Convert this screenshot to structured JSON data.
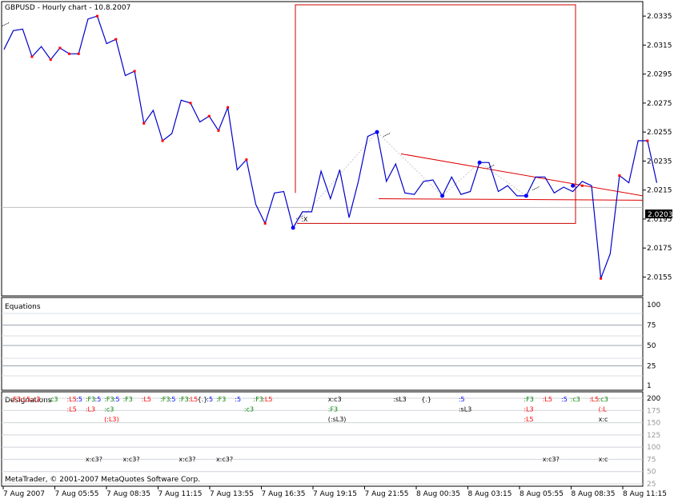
{
  "window": {
    "title": "GBPUSD - Hourly chart - 10.8.2007",
    "copyright": "MetaTrader, © 2001-2007 MetaQuotes Software Corp."
  },
  "panes": {
    "main": {
      "current_price_label": "2.0203"
    },
    "equations": {
      "title": "Equations",
      "ticks": [
        "100",
        "75",
        "50",
        "25",
        "1"
      ]
    },
    "designations": {
      "title": "Designations",
      "ticks": [
        "200",
        "175",
        "150",
        "125",
        "100",
        "75",
        "50",
        "25"
      ]
    }
  },
  "chart_data": {
    "type": "line",
    "title": "GBPUSD - Hourly chart - 10.8.2007",
    "ylim": [
      2.0142,
      2.0345
    ],
    "y_ticks": [
      "2.0335",
      "2.0315",
      "2.0295",
      "2.0275",
      "2.0255",
      "2.0235",
      "2.0215",
      "2.0195",
      "2.0175",
      "2.0155"
    ],
    "x_ticks": [
      "7 Aug 2007",
      "7 Aug 05:55",
      "7 Aug 08:35",
      "7 Aug 11:15",
      "7 Aug 13:55",
      "7 Aug 16:35",
      "7 Aug 19:15",
      "7 Aug 21:55",
      "8 Aug 00:35",
      "8 Aug 03:15",
      "8 Aug 05:55",
      "8 Aug 08:35",
      "8 Aug 11:15"
    ],
    "series": [
      {
        "values": [
          2.0312,
          2.0325,
          2.0326,
          2.0307,
          2.0314,
          2.0305,
          2.0313,
          2.0309,
          2.0309,
          2.0333,
          2.0335,
          2.0316,
          2.0319,
          2.0294,
          2.0297,
          2.0261,
          2.027,
          2.0249,
          2.0254,
          2.0277,
          2.0275,
          2.0262,
          2.0266,
          2.0256,
          2.0272,
          2.0229,
          2.0236,
          2.0205,
          2.0192,
          2.0213,
          2.0214,
          2.0189,
          2.02,
          2.02,
          2.0228,
          2.0209,
          2.0229,
          2.0196,
          2.0221,
          2.0252,
          2.0255,
          2.0221,
          2.0233,
          2.0213,
          2.0212,
          2.0221,
          2.0222,
          2.0211,
          2.0224,
          2.0212,
          2.0214,
          2.0234,
          2.0234,
          2.0214,
          2.0218,
          2.0211,
          2.0211,
          2.0224,
          2.0224,
          2.0213,
          2.0217,
          2.0214,
          2.0221,
          2.0218,
          2.0154,
          2.0171,
          2.0225,
          2.022,
          2.0249,
          2.0249,
          2.022
        ]
      }
    ],
    "markers": {
      "red_indices": [
        3,
        5,
        6,
        7,
        8,
        10,
        12,
        14,
        15,
        17,
        20,
        22,
        23,
        24,
        26,
        28,
        31,
        62,
        64,
        66,
        69
      ],
      "blue_indices": [
        31,
        40,
        47,
        51,
        56,
        61
      ],
      "red_prices": [
        2.0307,
        2.0305,
        2.0313,
        2.0309,
        2.0309,
        2.0335,
        2.0319,
        2.0297,
        2.0261,
        2.0249,
        2.0275,
        2.0266,
        2.0256,
        2.0272,
        2.0236,
        2.0192,
        2.0189,
        2.0218,
        2.0154,
        2.0225,
        2.0249
      ],
      "blue_prices": [
        2.0189,
        2.0255,
        2.0211,
        2.0234,
        2.0211,
        2.0218
      ]
    },
    "annotations": [
      ":X"
    ],
    "equations_levels": [
      100,
      75,
      50,
      25,
      1
    ],
    "designations_levels": [
      200,
      175,
      150,
      125,
      100,
      75,
      50,
      25
    ],
    "designation_labels": [
      {
        "text": ":F3:L5:c3",
        "color": "#ff0000",
        "row": 0,
        "xi": 1
      },
      {
        "text": ":c3",
        "color": "#008000",
        "row": 0,
        "xi": 5
      },
      {
        "text": ":L5",
        "color": "#ff0000",
        "row": 0,
        "xi": 7
      },
      {
        "text": ":5",
        "color": "#0000ff",
        "row": 0,
        "xi": 8
      },
      {
        "text": ":F3",
        "color": "#008000",
        "row": 0,
        "xi": 9
      },
      {
        "text": ":5",
        "color": "#0000ff",
        "row": 0,
        "xi": 10
      },
      {
        "text": ":F3",
        "color": "#008000",
        "row": 0,
        "xi": 11
      },
      {
        "text": ":5",
        "color": "#0000ff",
        "row": 0,
        "xi": 12
      },
      {
        "text": ":F3",
        "color": "#008000",
        "row": 0,
        "xi": 13
      },
      {
        "text": ":L5",
        "color": "#ff0000",
        "row": 0,
        "xi": 15
      },
      {
        "text": ":F3",
        "color": "#008000",
        "row": 0,
        "xi": 17
      },
      {
        "text": ":5",
        "color": "#0000ff",
        "row": 0,
        "xi": 18
      },
      {
        "text": ":F3",
        "color": "#008000",
        "row": 0,
        "xi": 19
      },
      {
        "text": ":L5",
        "color": "#ff0000",
        "row": 0,
        "xi": 20
      },
      {
        "text": "{.}",
        "color": "#000000",
        "row": 0,
        "xi": 21
      },
      {
        "text": ":5",
        "color": "#0000ff",
        "row": 0,
        "xi": 22
      },
      {
        "text": ":F3",
        "color": "#008000",
        "row": 0,
        "xi": 23
      },
      {
        "text": ":5",
        "color": "#0000ff",
        "row": 0,
        "xi": 25
      },
      {
        "text": ":F3",
        "color": "#008000",
        "row": 0,
        "xi": 27
      },
      {
        "text": ":L5",
        "color": "#ff0000",
        "row": 0,
        "xi": 28
      },
      {
        "text": "x:c3",
        "color": "#000000",
        "row": 0,
        "xi": 35
      },
      {
        "text": ":sL3",
        "color": "#000000",
        "row": 0,
        "xi": 42
      },
      {
        "text": "{.}",
        "color": "#000000",
        "row": 0,
        "xi": 45
      },
      {
        "text": ":5",
        "color": "#0000ff",
        "row": 0,
        "xi": 49
      },
      {
        "text": ":F3",
        "color": "#008000",
        "row": 0,
        "xi": 56
      },
      {
        "text": ":L5",
        "color": "#ff0000",
        "row": 0,
        "xi": 58
      },
      {
        "text": ":5",
        "color": "#0000ff",
        "row": 0,
        "xi": 60
      },
      {
        "text": ":c3",
        "color": "#008000",
        "row": 0,
        "xi": 61
      },
      {
        "text": ":L5",
        "color": "#ff0000",
        "row": 0,
        "xi": 63
      },
      {
        "text": ":c3",
        "color": "#008000",
        "row": 0,
        "xi": 64
      },
      {
        "text": ":L5",
        "color": "#ff0000",
        "row": 1,
        "xi": 7
      },
      {
        "text": ":L3",
        "color": "#ff0000",
        "row": 1,
        "xi": 9
      },
      {
        "text": ":c3",
        "color": "#008000",
        "row": 1,
        "xi": 11
      },
      {
        "text": ":c3",
        "color": "#008000",
        "row": 1,
        "xi": 26
      },
      {
        "text": ":F3",
        "color": "#008000",
        "row": 1,
        "xi": 35
      },
      {
        "text": ":sL3",
        "color": "#000000",
        "row": 1,
        "xi": 49
      },
      {
        "text": ":L3",
        "color": "#ff0000",
        "row": 1,
        "xi": 56
      },
      {
        "text": "(:L",
        "color": "#ff0000",
        "row": 1,
        "xi": 64
      },
      {
        "text": "(:L3)",
        "color": "#ff0000",
        "row": 2,
        "xi": 11
      },
      {
        "text": "(:sL3)",
        "color": "#000000",
        "row": 2,
        "xi": 35
      },
      {
        "text": ":L5",
        "color": "#ff0000",
        "row": 2,
        "xi": 56
      },
      {
        "text": "x:c",
        "color": "#000000",
        "row": 2,
        "xi": 64
      },
      {
        "text": "x:c3?",
        "color": "#000000",
        "row": 6,
        "xi": 9
      },
      {
        "text": "x:c3?",
        "color": "#000000",
        "row": 6,
        "xi": 13
      },
      {
        "text": "x:c3?",
        "color": "#000000",
        "row": 6,
        "xi": 19
      },
      {
        "text": "x:c3?",
        "color": "#000000",
        "row": 6,
        "xi": 23
      },
      {
        "text": "x:c3?",
        "color": "#000000",
        "row": 6,
        "xi": 58
      },
      {
        "text": "x:c",
        "color": "#000000",
        "row": 6,
        "xi": 64
      }
    ]
  }
}
